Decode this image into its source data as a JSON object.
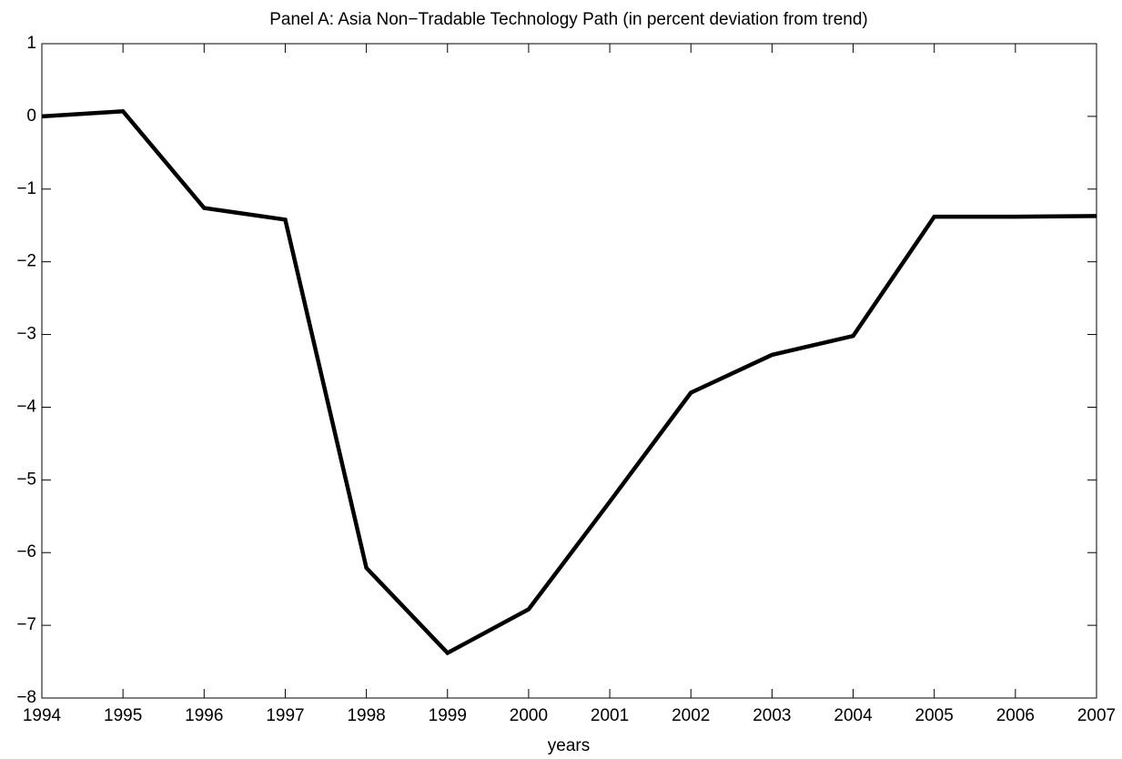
{
  "chart_data": {
    "type": "line",
    "title": "Panel A: Asia Non−Tradable Technology Path (in percent deviation from trend)",
    "x_label": "years",
    "x": [
      1994,
      1995,
      1996,
      1997,
      1998,
      1999,
      2000,
      2001,
      2002,
      2003,
      2004,
      2005,
      2006,
      2007
    ],
    "series": [
      {
        "color": "#000000",
        "values": [
          0.0,
          0.07,
          -1.26,
          -1.42,
          -6.21,
          -7.38,
          -6.78,
          -5.3,
          -3.8,
          -3.28,
          -3.02,
          -1.38,
          -1.38,
          -1.37
        ]
      }
    ],
    "xlim": [
      1994,
      2007
    ],
    "xticks": [
      1994,
      1995,
      1996,
      1997,
      1998,
      1999,
      2000,
      2001,
      2002,
      2003,
      2004,
      2005,
      2006,
      2007
    ],
    "ylim": [
      -8,
      1
    ],
    "yticks": [
      {
        "value": -8,
        "label": "−8"
      },
      {
        "value": -7,
        "label": "−7"
      },
      {
        "value": -6,
        "label": "−6"
      },
      {
        "value": -5,
        "label": "−5"
      },
      {
        "value": -4,
        "label": "−4"
      },
      {
        "value": -3,
        "label": "−3"
      },
      {
        "value": -2,
        "label": "−2"
      },
      {
        "value": -1,
        "label": "−1"
      },
      0,
      1
    ],
    "grid": false
  }
}
